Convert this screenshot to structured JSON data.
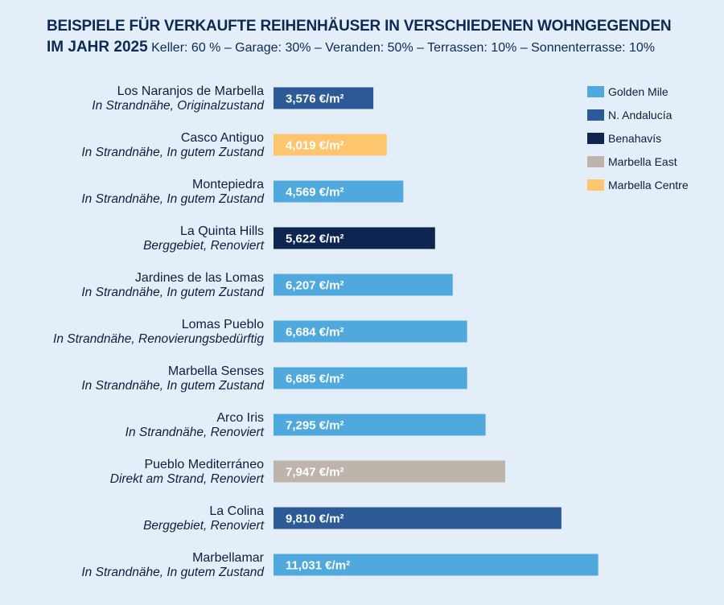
{
  "chart_data": {
    "type": "bar",
    "orientation": "horizontal",
    "title": "BEISPIELE FÜR VERKAUFTE REIHENHÄUSER IN VERSCHIEDENEN WOHNGEGENDEN",
    "subtitle_bold": "IM JAHR 2025",
    "subtitle": "Keller: 60 % – Garage: 30% – Veranden: 50% – Terrassen: 10% – Sonnenterrasse: 10%",
    "unit": "€/m²",
    "legend_position": "top-right",
    "legend": [
      {
        "name": "Golden Mile",
        "color": "#4fa9dc"
      },
      {
        "name": "N. Andalucía",
        "color": "#2b5a96"
      },
      {
        "name": "Benahavís",
        "color": "#0e2551"
      },
      {
        "name": "Marbella East",
        "color": "#bdb5ab"
      },
      {
        "name": "Marbella Centre",
        "color": "#fec56f"
      }
    ],
    "bars": [
      {
        "name": "Los Naranjos de Marbella",
        "desc": "In Strandnähe, Originalzustand",
        "value": 3576,
        "label": "3,576 €/m²",
        "area": "N. Andalucía"
      },
      {
        "name": "Casco Antiguo",
        "desc": "In Strandnähe, In gutem Zustand",
        "value": 4019,
        "label": "4,019 €/m²",
        "area": "Marbella Centre"
      },
      {
        "name": "Montepiedra",
        "desc": "In Strandnähe, In gutem Zustand",
        "value": 4569,
        "label": "4,569 €/m²",
        "area": "Golden Mile"
      },
      {
        "name": "La Quinta Hills",
        "desc": "Berggebiet, Renoviert",
        "value": 5622,
        "label": "5,622 €/m²",
        "area": "Benahavís"
      },
      {
        "name": "Jardines de las Lomas",
        "desc": "In Strandnähe, In gutem Zustand",
        "value": 6207,
        "label": "6,207 €/m²",
        "area": "Golden Mile"
      },
      {
        "name": "Lomas Pueblo",
        "desc": "In Strandnähe, Renovierungsbedürftig",
        "value": 6684,
        "label": "6,684 €/m²",
        "area": "Golden Mile"
      },
      {
        "name": "Marbella Senses",
        "desc": "In Strandnähe, In gutem Zustand",
        "value": 6685,
        "label": "6,685 €/m²",
        "area": "Golden Mile"
      },
      {
        "name": "Arco Iris",
        "desc": "In Strandnähe, Renoviert",
        "value": 7295,
        "label": "7,295 €/m²",
        "area": "Golden Mile"
      },
      {
        "name": "Pueblo Mediterráneo",
        "desc": "Direkt am Strand, Renoviert",
        "value": 7947,
        "label": "7,947 €/m²",
        "area": "Marbella East"
      },
      {
        "name": "La Colina",
        "desc": "Berggebiet, Renoviert",
        "value": 9810,
        "label": "9,810 €/m²",
        "area": "N. Andalucía"
      },
      {
        "name": "Marbellamar",
        "desc": "In Strandnähe, In gutem Zustand",
        "value": 11031,
        "label": "11,031 €/m²",
        "area": "Golden Mile"
      }
    ]
  }
}
